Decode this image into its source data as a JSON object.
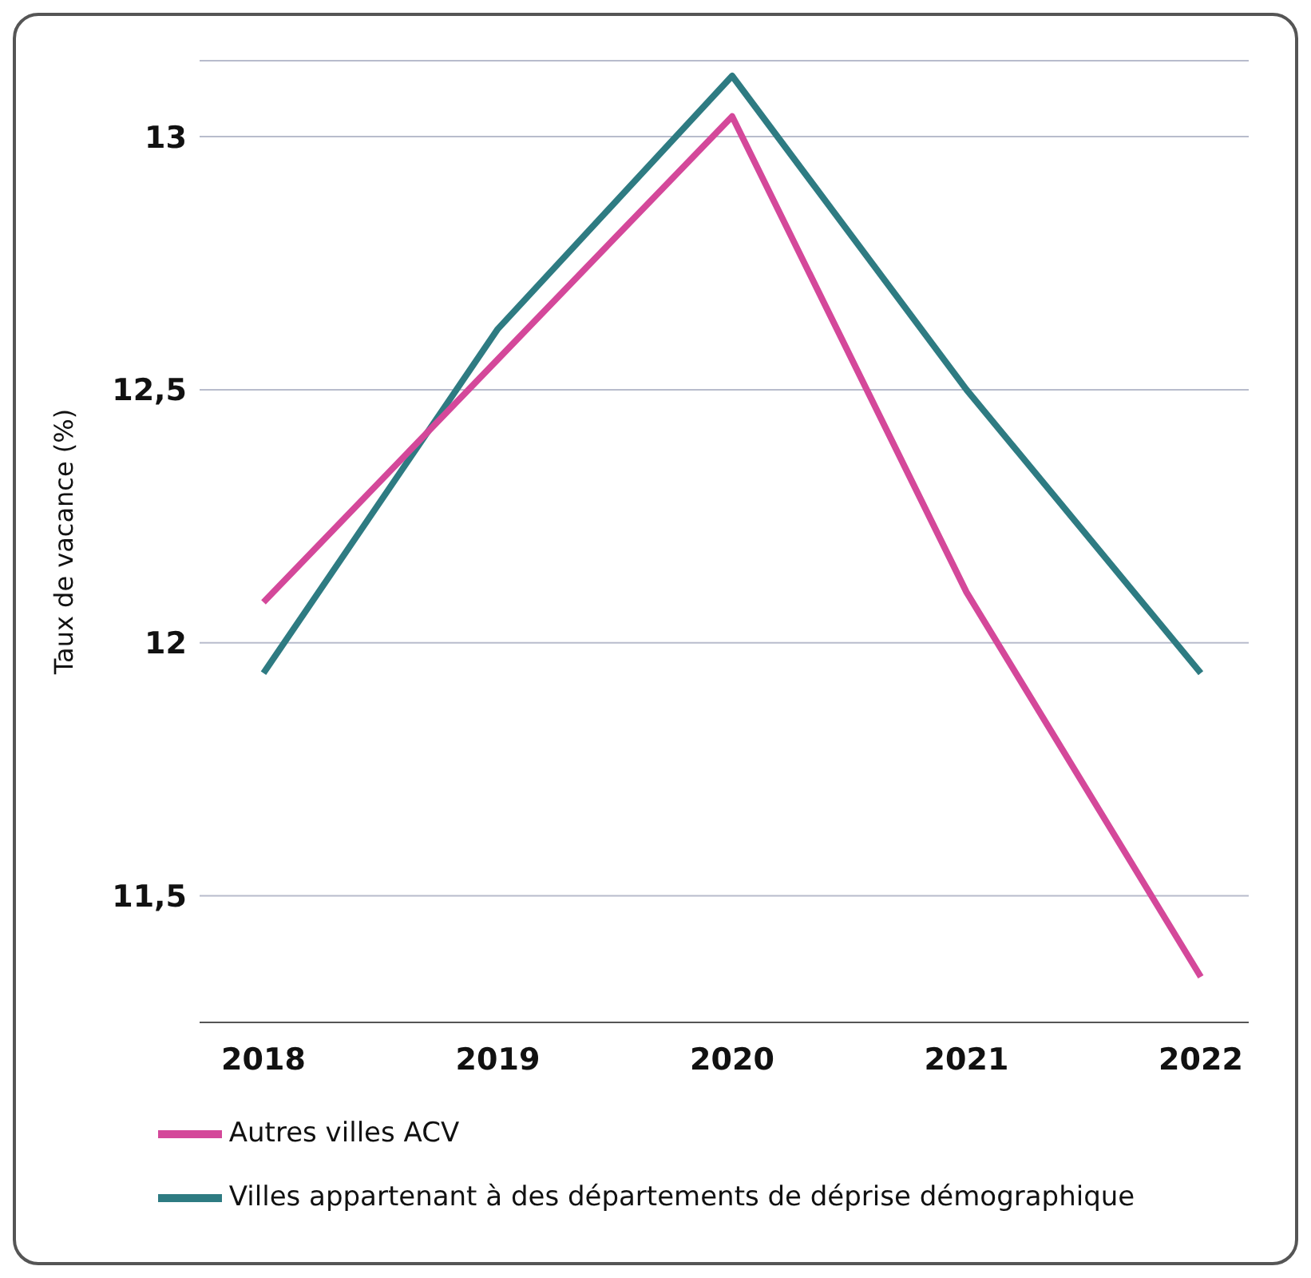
{
  "chart_data": {
    "type": "line",
    "ylabel": "Taux de vacance (%)",
    "categories": [
      "2018",
      "2019",
      "2020",
      "2021",
      "2022"
    ],
    "series": [
      {
        "name": "Villes appartenant à des départements de déprise démographique",
        "color": "#2e7b82",
        "values": [
          11.94,
          12.62,
          13.12,
          12.5,
          11.94
        ]
      },
      {
        "name": "Autres villes ACV",
        "color": "#d4489a",
        "values": [
          12.08,
          12.56,
          13.04,
          12.1,
          11.34
        ]
      }
    ],
    "ylim": [
      11.25,
      13.15
    ],
    "yticks": [
      {
        "value": 11.5,
        "label": "11,5"
      },
      {
        "value": 12,
        "label": "12"
      },
      {
        "value": 12.5,
        "label": "12,5"
      },
      {
        "value": 13,
        "label": "13"
      }
    ],
    "grid": "y",
    "legend": "bottom",
    "marker": "none",
    "line_style": "solid"
  }
}
